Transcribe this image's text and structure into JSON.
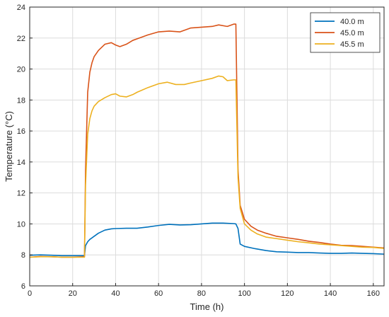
{
  "chart_data": {
    "type": "line",
    "title": "",
    "xlabel": "Time (h)",
    "ylabel": "Temperature (°C)",
    "xlim": [
      0,
      165
    ],
    "ylim": [
      6,
      24
    ],
    "xticks": [
      0,
      20,
      40,
      60,
      80,
      100,
      120,
      140,
      160
    ],
    "yticks": [
      6,
      8,
      10,
      12,
      14,
      16,
      18,
      20,
      22,
      24
    ],
    "grid": true,
    "legend_position": "top-right",
    "series": [
      {
        "name": "40.0 m",
        "color": "#0072BD",
        "points": [
          [
            0,
            7.98
          ],
          [
            5,
            8.0
          ],
          [
            10,
            7.98
          ],
          [
            15,
            7.95
          ],
          [
            20,
            7.95
          ],
          [
            25.5,
            7.95
          ],
          [
            26,
            8.6
          ],
          [
            27,
            8.85
          ],
          [
            28,
            9.0
          ],
          [
            30,
            9.2
          ],
          [
            32,
            9.4
          ],
          [
            35,
            9.6
          ],
          [
            38,
            9.68
          ],
          [
            40,
            9.7
          ],
          [
            45,
            9.72
          ],
          [
            50,
            9.72
          ],
          [
            55,
            9.8
          ],
          [
            60,
            9.9
          ],
          [
            65,
            9.97
          ],
          [
            70,
            9.93
          ],
          [
            75,
            9.95
          ],
          [
            80,
            10.0
          ],
          [
            85,
            10.05
          ],
          [
            90,
            10.05
          ],
          [
            95,
            10.02
          ],
          [
            96,
            10.0
          ],
          [
            97,
            9.7
          ],
          [
            98,
            8.7
          ],
          [
            100,
            8.55
          ],
          [
            105,
            8.4
          ],
          [
            110,
            8.28
          ],
          [
            115,
            8.2
          ],
          [
            120,
            8.18
          ],
          [
            125,
            8.15
          ],
          [
            130,
            8.15
          ],
          [
            135,
            8.12
          ],
          [
            140,
            8.1
          ],
          [
            145,
            8.1
          ],
          [
            150,
            8.12
          ],
          [
            155,
            8.1
          ],
          [
            160,
            8.08
          ],
          [
            165,
            8.05
          ]
        ]
      },
      {
        "name": "45.0 m",
        "color": "#D95319",
        "points": [
          [
            0,
            7.85
          ],
          [
            5,
            7.9
          ],
          [
            10,
            7.88
          ],
          [
            15,
            7.85
          ],
          [
            20,
            7.85
          ],
          [
            25.5,
            7.88
          ],
          [
            26,
            13.5
          ],
          [
            27,
            18.5
          ],
          [
            28,
            19.8
          ],
          [
            29,
            20.4
          ],
          [
            30,
            20.8
          ],
          [
            32,
            21.2
          ],
          [
            35,
            21.6
          ],
          [
            38,
            21.7
          ],
          [
            40,
            21.55
          ],
          [
            42,
            21.45
          ],
          [
            45,
            21.6
          ],
          [
            48,
            21.85
          ],
          [
            50,
            21.95
          ],
          [
            55,
            22.2
          ],
          [
            60,
            22.4
          ],
          [
            65,
            22.45
          ],
          [
            70,
            22.4
          ],
          [
            75,
            22.65
          ],
          [
            80,
            22.7
          ],
          [
            85,
            22.75
          ],
          [
            88,
            22.85
          ],
          [
            92,
            22.75
          ],
          [
            95,
            22.9
          ],
          [
            96,
            22.9
          ],
          [
            97,
            13.5
          ],
          [
            98,
            11.2
          ],
          [
            100,
            10.3
          ],
          [
            103,
            9.85
          ],
          [
            106,
            9.6
          ],
          [
            110,
            9.4
          ],
          [
            115,
            9.2
          ],
          [
            120,
            9.1
          ],
          [
            125,
            9.0
          ],
          [
            130,
            8.88
          ],
          [
            135,
            8.8
          ],
          [
            140,
            8.7
          ],
          [
            145,
            8.62
          ],
          [
            150,
            8.6
          ],
          [
            155,
            8.55
          ],
          [
            160,
            8.5
          ],
          [
            165,
            8.45
          ]
        ]
      },
      {
        "name": "45.5 m",
        "color": "#EDB120",
        "points": [
          [
            0,
            7.85
          ],
          [
            5,
            7.88
          ],
          [
            10,
            7.88
          ],
          [
            15,
            7.85
          ],
          [
            20,
            7.85
          ],
          [
            25.5,
            7.85
          ],
          [
            26,
            12.5
          ],
          [
            27,
            15.8
          ],
          [
            28,
            16.8
          ],
          [
            29,
            17.3
          ],
          [
            30,
            17.6
          ],
          [
            32,
            17.9
          ],
          [
            35,
            18.15
          ],
          [
            38,
            18.35
          ],
          [
            40,
            18.4
          ],
          [
            42,
            18.25
          ],
          [
            45,
            18.2
          ],
          [
            48,
            18.35
          ],
          [
            50,
            18.5
          ],
          [
            55,
            18.8
          ],
          [
            60,
            19.05
          ],
          [
            64,
            19.15
          ],
          [
            68,
            19.0
          ],
          [
            72,
            19.0
          ],
          [
            75,
            19.1
          ],
          [
            80,
            19.25
          ],
          [
            85,
            19.4
          ],
          [
            88,
            19.55
          ],
          [
            90,
            19.5
          ],
          [
            92,
            19.25
          ],
          [
            95,
            19.3
          ],
          [
            96,
            19.3
          ],
          [
            97,
            13.0
          ],
          [
            98,
            11.0
          ],
          [
            100,
            10.0
          ],
          [
            103,
            9.6
          ],
          [
            106,
            9.35
          ],
          [
            110,
            9.15
          ],
          [
            115,
            9.05
          ],
          [
            120,
            8.95
          ],
          [
            125,
            8.85
          ],
          [
            130,
            8.78
          ],
          [
            135,
            8.7
          ],
          [
            140,
            8.65
          ],
          [
            145,
            8.6
          ],
          [
            150,
            8.55
          ],
          [
            155,
            8.5
          ],
          [
            160,
            8.48
          ],
          [
            165,
            8.42
          ]
        ]
      }
    ]
  }
}
